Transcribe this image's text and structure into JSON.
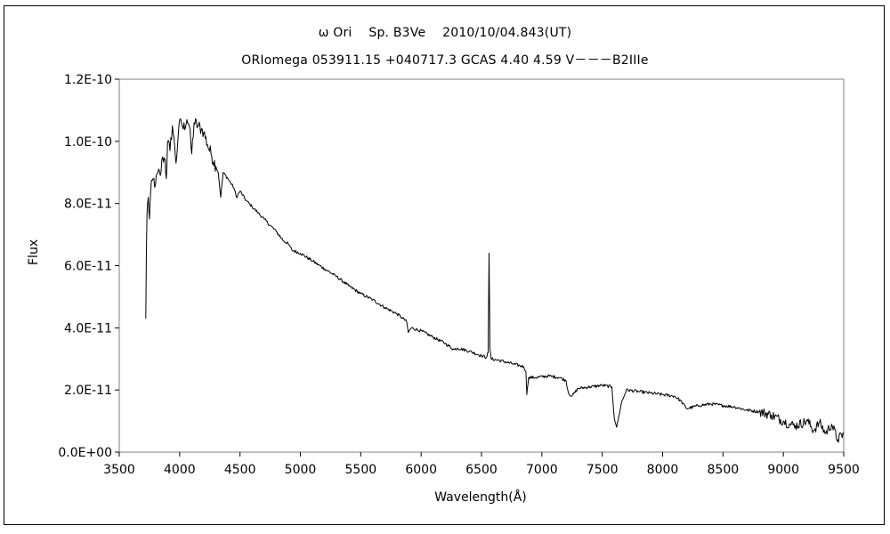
{
  "chart_data": {
    "type": "line",
    "title": "ω Ori　 Sp. B3Ve　 2010/10/04.843(UT)",
    "subtitle": "ORIomega 053911.15 +040717.3 GCAS 4.40 4.59 V－－－B2IIIe",
    "xlabel": "Wavelength(Å)",
    "ylabel": "Flux",
    "xlim": [
      3500,
      9500
    ],
    "ylim": [
      0,
      1.2e-10
    ],
    "x_ticks": [
      "3500",
      "4000",
      "4500",
      "5000",
      "5500",
      "6000",
      "6500",
      "7000",
      "7500",
      "8000",
      "8500",
      "9000",
      "9500"
    ],
    "y_ticks": [
      "0.0E+00",
      "2.0E-11",
      "4.0E-11",
      "6.0E-11",
      "8.0E-11",
      "1.0E-10",
      "1.2E-10"
    ],
    "grid": false,
    "legend": "none",
    "series": [
      {
        "color": "#000000",
        "points": [
          [
            3720,
            4.3e-11
          ],
          [
            3725,
            6.5e-11
          ],
          [
            3730,
            7.7e-11
          ],
          [
            3740,
            8.2e-11
          ],
          [
            3750,
            7.5e-11
          ],
          [
            3760,
            8.4e-11
          ],
          [
            3780,
            8.8e-11
          ],
          [
            3800,
            8.6e-11
          ],
          [
            3820,
            9e-11
          ],
          [
            3840,
            8.9e-11
          ],
          [
            3860,
            9.5e-11
          ],
          [
            3880,
            9.4e-11
          ],
          [
            3890,
            8.8e-11
          ],
          [
            3900,
            1e-10
          ],
          [
            3920,
            9.7e-11
          ],
          [
            3940,
            1.05e-10
          ],
          [
            3960,
            9.8e-11
          ],
          [
            3970,
            9.3e-11
          ],
          [
            3990,
            1.03e-10
          ],
          [
            4010,
            1.07e-10
          ],
          [
            4030,
            1.04e-10
          ],
          [
            4060,
            1.07e-10
          ],
          [
            4080,
            1.05e-10
          ],
          [
            4100,
            9.6e-11
          ],
          [
            4120,
            1.06e-10
          ],
          [
            4150,
            1.05e-10
          ],
          [
            4180,
            1.04e-10
          ],
          [
            4200,
            1.03e-10
          ],
          [
            4230,
            9.9e-11
          ],
          [
            4260,
            9.6e-11
          ],
          [
            4300,
            9.2e-11
          ],
          [
            4320,
            9e-11
          ],
          [
            4340,
            8.2e-11
          ],
          [
            4360,
            9e-11
          ],
          [
            4400,
            8.8e-11
          ],
          [
            4450,
            8.5e-11
          ],
          [
            4471,
            8.2e-11
          ],
          [
            4500,
            8.4e-11
          ],
          [
            4550,
            8.1e-11
          ],
          [
            4600,
            7.9e-11
          ],
          [
            4650,
            7.7e-11
          ],
          [
            4700,
            7.5e-11
          ],
          [
            4750,
            7.3e-11
          ],
          [
            4800,
            7.1e-11
          ],
          [
            4861,
            6.8e-11
          ],
          [
            4900,
            6.7e-11
          ],
          [
            4930,
            6.5e-11
          ],
          [
            5000,
            6.4e-11
          ],
          [
            5100,
            6.15e-11
          ],
          [
            5200,
            5.9e-11
          ],
          [
            5300,
            5.65e-11
          ],
          [
            5400,
            5.35e-11
          ],
          [
            5500,
            5.1e-11
          ],
          [
            5600,
            4.9e-11
          ],
          [
            5700,
            4.65e-11
          ],
          [
            5800,
            4.45e-11
          ],
          [
            5850,
            4.3e-11
          ],
          [
            5880,
            4.2e-11
          ],
          [
            5893,
            3.85e-11
          ],
          [
            5920,
            4e-11
          ],
          [
            6000,
            3.9e-11
          ],
          [
            6100,
            3.7e-11
          ],
          [
            6200,
            3.5e-11
          ],
          [
            6270,
            3.3e-11
          ],
          [
            6300,
            3.35e-11
          ],
          [
            6400,
            3.25e-11
          ],
          [
            6500,
            3.1e-11
          ],
          [
            6540,
            3.05e-11
          ],
          [
            6555,
            3.2e-11
          ],
          [
            6563,
            6.4e-11
          ],
          [
            6570,
            3.3e-11
          ],
          [
            6580,
            3e-11
          ],
          [
            6650,
            2.95e-11
          ],
          [
            6750,
            2.85e-11
          ],
          [
            6850,
            2.75e-11
          ],
          [
            6868,
            2.6e-11
          ],
          [
            6875,
            1.85e-11
          ],
          [
            6890,
            2.4e-11
          ],
          [
            6950,
            2.4e-11
          ],
          [
            7050,
            2.45e-11
          ],
          [
            7150,
            2.4e-11
          ],
          [
            7200,
            2.3e-11
          ],
          [
            7220,
            1.9e-11
          ],
          [
            7250,
            1.8e-11
          ],
          [
            7300,
            2.05e-11
          ],
          [
            7400,
            2.1e-11
          ],
          [
            7500,
            2.15e-11
          ],
          [
            7580,
            2.1e-11
          ],
          [
            7600,
            1.1e-11
          ],
          [
            7620,
            8e-12
          ],
          [
            7660,
            1.6e-11
          ],
          [
            7700,
            2e-11
          ],
          [
            7800,
            1.95e-11
          ],
          [
            7900,
            1.9e-11
          ],
          [
            8000,
            1.85e-11
          ],
          [
            8100,
            1.8e-11
          ],
          [
            8150,
            1.65e-11
          ],
          [
            8200,
            1.4e-11
          ],
          [
            8300,
            1.5e-11
          ],
          [
            8400,
            1.55e-11
          ],
          [
            8500,
            1.5e-11
          ],
          [
            8600,
            1.45e-11
          ],
          [
            8700,
            1.35e-11
          ],
          [
            8800,
            1.3e-11
          ],
          [
            8900,
            1.2e-11
          ],
          [
            9000,
            1e-11
          ],
          [
            9050,
            9e-12
          ],
          [
            9100,
            8.5e-12
          ],
          [
            9200,
            1e-11
          ],
          [
            9250,
            7e-12
          ],
          [
            9300,
            9.5e-12
          ],
          [
            9350,
            6e-12
          ],
          [
            9400,
            9e-12
          ],
          [
            9450,
            4e-12
          ],
          [
            9500,
            6e-12
          ]
        ]
      }
    ]
  }
}
